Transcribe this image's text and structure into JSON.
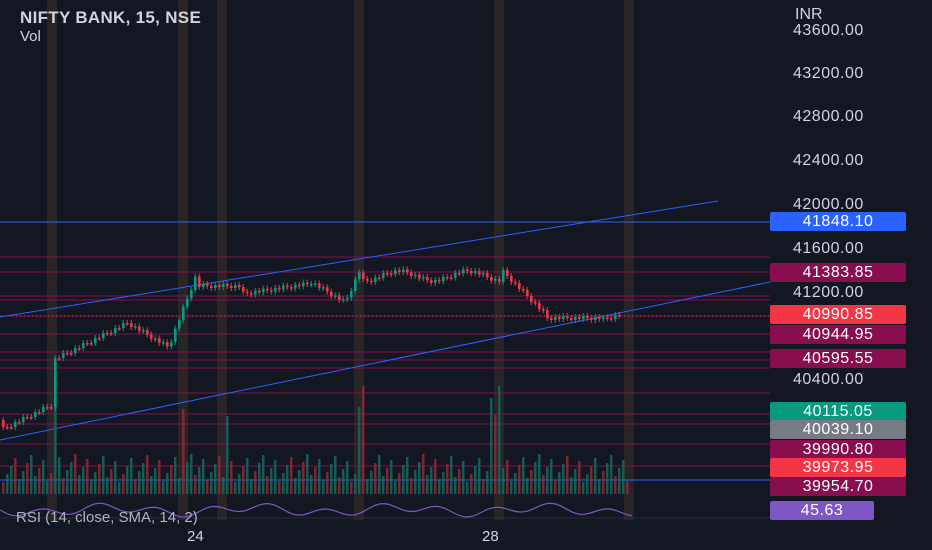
{
  "header": {
    "symbol": "NIFTY BANK, 15, NSE",
    "volume_label": "Vol"
  },
  "axis": {
    "currency": "INR",
    "ticks": [
      "43600.00",
      "43200.00",
      "42800.00",
      "42400.00",
      "42000.00",
      "41600.00",
      "41200.00",
      "40400.00"
    ]
  },
  "price_labels": [
    {
      "value": "41848.10",
      "color": "#2962ff"
    },
    {
      "value": "41383.85",
      "color": "#880e4f"
    },
    {
      "value": "40990.85",
      "color": "#f23645"
    },
    {
      "value": "40944.95",
      "color": "#880e4f"
    },
    {
      "value": "40595.55",
      "color": "#880e4f"
    },
    {
      "value": "40115.05",
      "color": "#089981"
    },
    {
      "value": "40039.10",
      "color": "#787b86"
    },
    {
      "value": "39990.80",
      "color": "#880e4f"
    },
    {
      "value": "39973.95",
      "color": "#f23645"
    },
    {
      "value": "39954.70",
      "color": "#880e4f"
    }
  ],
  "rsi": {
    "label": "RSI (14, close, SMA, 14, 2)",
    "value": "45.63",
    "color": "#7e57c2"
  },
  "time_axis": {
    "labels": [
      "24",
      "28"
    ]
  },
  "colors": {
    "up": "#089981",
    "down": "#f23645",
    "background": "#131722",
    "trendline": "#2962ff",
    "level": "#880e4f"
  }
}
